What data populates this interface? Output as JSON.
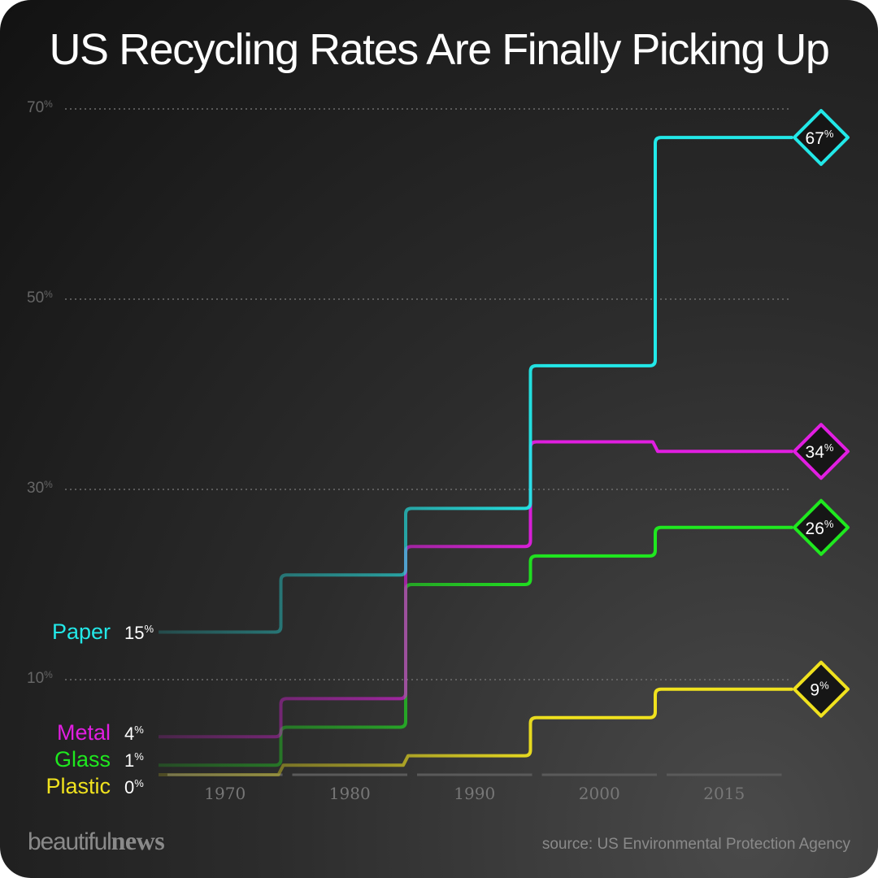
{
  "title": "US Recycling Rates Are Finally Picking Up",
  "source": "source: US Environmental Protection Agency",
  "logo": {
    "light": "beautiful",
    "bold": "news"
  },
  "chart_data": {
    "type": "line",
    "step": true,
    "categories": [
      "1970",
      "1980",
      "1990",
      "2000",
      "2015"
    ],
    "ylim": [
      0,
      70
    ],
    "yticks": [
      {
        "value": 10,
        "label": "10",
        "unit": "%"
      },
      {
        "value": 30,
        "label": "30",
        "unit": "%"
      },
      {
        "value": 50,
        "label": "50",
        "unit": "%"
      },
      {
        "value": 70,
        "label": "70",
        "unit": "%"
      }
    ],
    "grid": true,
    "series": [
      {
        "name": "Paper",
        "color": "#22e8e8",
        "start_label": "15",
        "end_label": "67",
        "unit": "%",
        "values": [
          15,
          21,
          28,
          43,
          67
        ]
      },
      {
        "name": "Metal",
        "color": "#e11ee1",
        "start_label": "4",
        "end_label": "34",
        "unit": "%",
        "values": [
          4,
          8,
          24,
          35,
          34
        ]
      },
      {
        "name": "Glass",
        "color": "#1fe81f",
        "start_label": "1",
        "end_label": "26",
        "unit": "%",
        "values": [
          1,
          5,
          20,
          23,
          26
        ]
      },
      {
        "name": "Plastic",
        "color": "#f0e21e",
        "start_label": "0",
        "end_label": "9",
        "unit": "%",
        "values": [
          0,
          1,
          2,
          6,
          9
        ]
      }
    ]
  }
}
